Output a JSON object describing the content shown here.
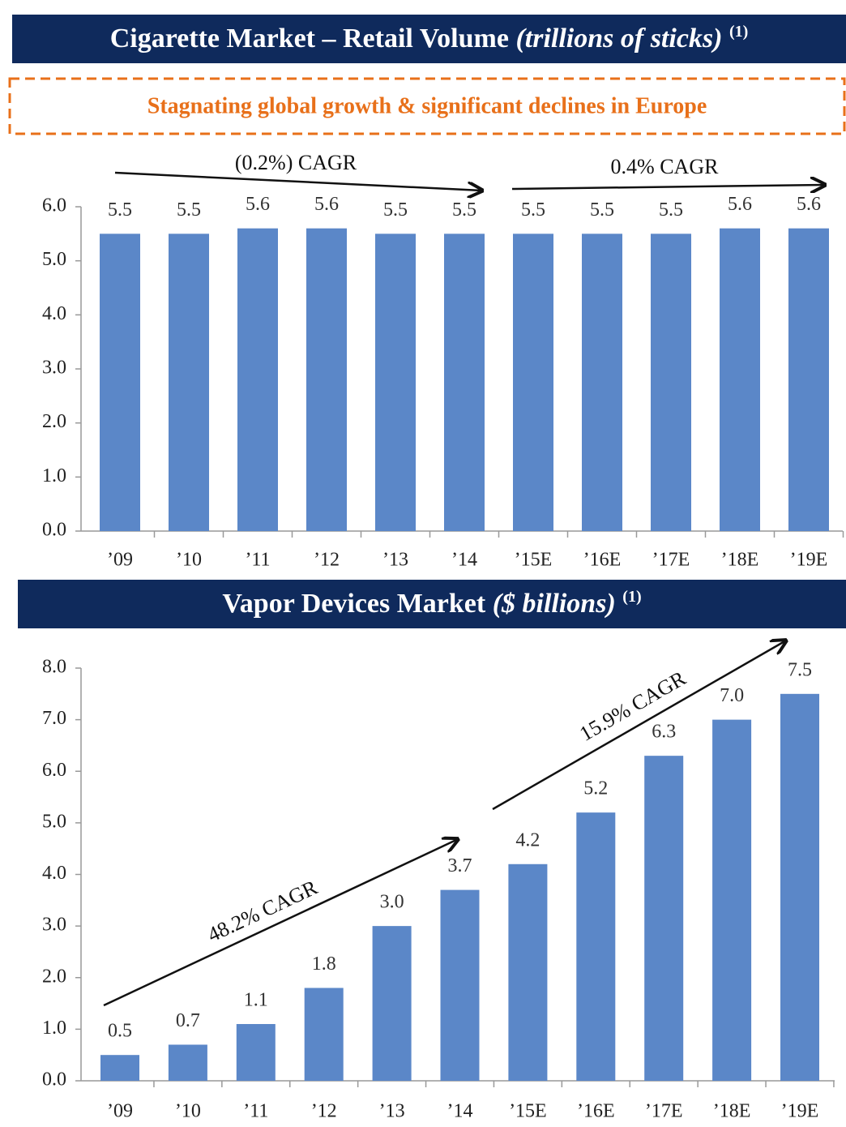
{
  "chart_data": [
    {
      "type": "bar",
      "title": "Cigarette Market – Retail Volume",
      "title_unit": "(trillions of sticks)",
      "title_note": "(1)",
      "subtitle": "Stagnating global growth & significant declines in Europe",
      "annotations": [
        "(0.2%) CAGR",
        "0.4% CAGR"
      ],
      "categories": [
        "’09",
        "’10",
        "’11",
        "’12",
        "’13",
        "’14",
        "’15E",
        "’16E",
        "’17E",
        "’18E",
        "’19E"
      ],
      "values": [
        5.5,
        5.5,
        5.6,
        5.6,
        5.5,
        5.5,
        5.5,
        5.5,
        5.5,
        5.6,
        5.6
      ],
      "value_labels": [
        "5.5",
        "5.5",
        "5.6",
        "5.6",
        "5.5",
        "5.5",
        "5.5",
        "5.5",
        "5.5",
        "5.6",
        "5.6"
      ],
      "color": "#5b87c8",
      "ylim": [
        0,
        6
      ],
      "yticks": [
        {
          "value": 0,
          "label": "0.0"
        },
        {
          "value": 1,
          "label": "1.0"
        },
        {
          "value": 2,
          "label": "2.0"
        },
        {
          "value": 3,
          "label": "3.0"
        },
        {
          "value": 4,
          "label": "4.0"
        },
        {
          "value": 5,
          "label": "5.0"
        },
        {
          "value": 6,
          "label": "6.0"
        }
      ],
      "grid": false
    },
    {
      "type": "bar",
      "title": "Vapor Devices Market",
      "title_unit": "($ billions)",
      "title_note": "(1)",
      "annotations": [
        "48.2% CAGR",
        "15.9% CAGR"
      ],
      "categories": [
        "’09",
        "’10",
        "’11",
        "’12",
        "’13",
        "’14",
        "’15E",
        "’16E",
        "’17E",
        "’18E",
        "’19E"
      ],
      "values": [
        0.5,
        0.7,
        1.1,
        1.8,
        3.0,
        3.7,
        4.2,
        5.2,
        6.3,
        7.0,
        7.5
      ],
      "value_labels": [
        "0.5",
        "0.7",
        "1.1",
        "1.8",
        "3.0",
        "3.7",
        "4.2",
        "5.2",
        "6.3",
        "7.0",
        "7.5"
      ],
      "color": "#5b87c8",
      "ylim": [
        0,
        8
      ],
      "yticks": [
        {
          "value": 0,
          "label": "0.0"
        },
        {
          "value": 1,
          "label": "1.0"
        },
        {
          "value": 2,
          "label": "2.0"
        },
        {
          "value": 3,
          "label": "3.0"
        },
        {
          "value": 4,
          "label": "4.0"
        },
        {
          "value": 5,
          "label": "5.0"
        },
        {
          "value": 6,
          "label": "6.0"
        },
        {
          "value": 7,
          "label": "7.0"
        },
        {
          "value": 8,
          "label": "8.0"
        }
      ],
      "grid": false
    }
  ]
}
